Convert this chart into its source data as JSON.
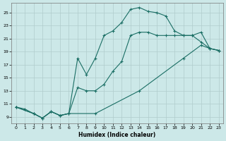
{
  "xlabel": "Humidex (Indice chaleur)",
  "bg_color": "#cce8e8",
  "grid_color": "#b0cccc",
  "line_color": "#1a6e64",
  "curve1_x": [
    0,
    1,
    2,
    3,
    4,
    5,
    6,
    7,
    8,
    9,
    10,
    11,
    12,
    13,
    14,
    15,
    16,
    17,
    18,
    19,
    20,
    21,
    22,
    23
  ],
  "curve1_y": [
    10.5,
    10.2,
    9.5,
    8.8,
    9.8,
    9.2,
    9.5,
    18.0,
    15.5,
    18.0,
    21.5,
    22.2,
    23.5,
    25.5,
    25.8,
    25.2,
    25.0,
    24.5,
    22.2,
    21.5,
    21.5,
    20.5,
    19.5,
    19.2
  ],
  "curve2_x": [
    0,
    2,
    3,
    4,
    5,
    6,
    7,
    8,
    9,
    10,
    11,
    12,
    13,
    14,
    15,
    16,
    17,
    18,
    19,
    20,
    21,
    22,
    23
  ],
  "curve2_y": [
    10.5,
    9.5,
    8.8,
    9.8,
    9.2,
    9.5,
    13.5,
    13.0,
    13.0,
    14.0,
    16.0,
    17.5,
    21.5,
    22.0,
    22.0,
    21.5,
    21.5,
    21.5,
    21.5,
    21.5,
    22.0,
    19.5,
    19.2
  ],
  "curve3_x": [
    0,
    2,
    3,
    4,
    5,
    6,
    9,
    14,
    19,
    21,
    22,
    23
  ],
  "curve3_y": [
    10.5,
    9.5,
    8.8,
    9.8,
    9.2,
    9.5,
    9.5,
    13.0,
    18.0,
    20.0,
    19.5,
    19.2
  ],
  "xlim": [
    -0.5,
    23.5
  ],
  "ylim": [
    8.0,
    26.5
  ],
  "yticks": [
    9,
    11,
    13,
    15,
    17,
    19,
    21,
    23,
    25
  ],
  "xticks": [
    0,
    1,
    2,
    3,
    4,
    5,
    6,
    7,
    8,
    9,
    10,
    11,
    12,
    13,
    14,
    15,
    16,
    17,
    18,
    19,
    20,
    21,
    22,
    23
  ]
}
